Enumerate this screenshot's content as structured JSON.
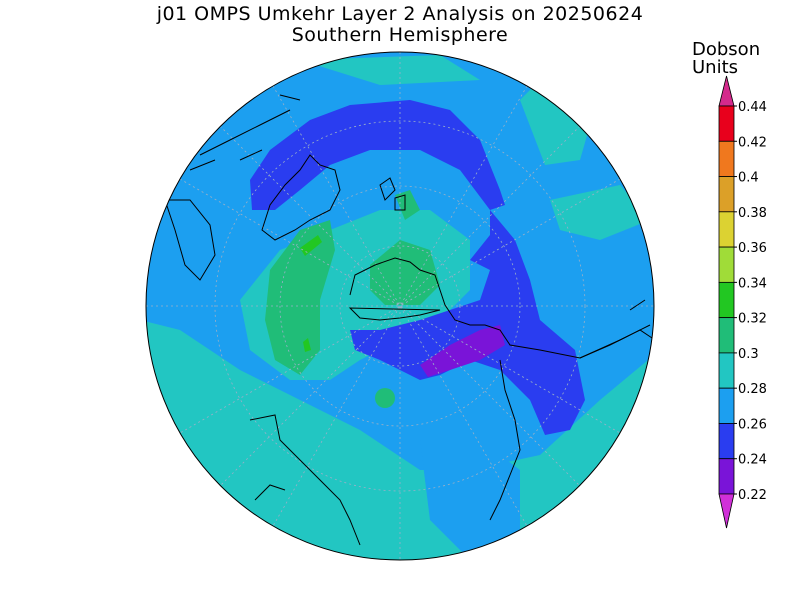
{
  "title": {
    "line1": "j01 OMPS Umkehr Layer 2 Analysis on 20250624",
    "line2": "Southern Hemisphere"
  },
  "colorbar": {
    "unit_line1": "Dobson",
    "unit_line2": "Units",
    "ticks": [
      "0.44",
      "0.42",
      "0.4",
      "0.38",
      "0.36",
      "0.34",
      "0.32",
      "0.3",
      "0.28",
      "0.26",
      "0.24",
      "0.22"
    ],
    "colors": [
      "#e8001c",
      "#f0781e",
      "#dca028",
      "#dcd232",
      "#a0dc38",
      "#22c722",
      "#20bd78",
      "#22c6c2",
      "#1c9ff0",
      "#2a3df0",
      "#7a14d8"
    ],
    "over_color": "#d42a8c",
    "under_color": "#d030d8"
  },
  "map": {
    "projection": "south-polar-stereographic",
    "background_color": "#22c6c2",
    "coastline_color": "#000000",
    "grid": true
  }
}
